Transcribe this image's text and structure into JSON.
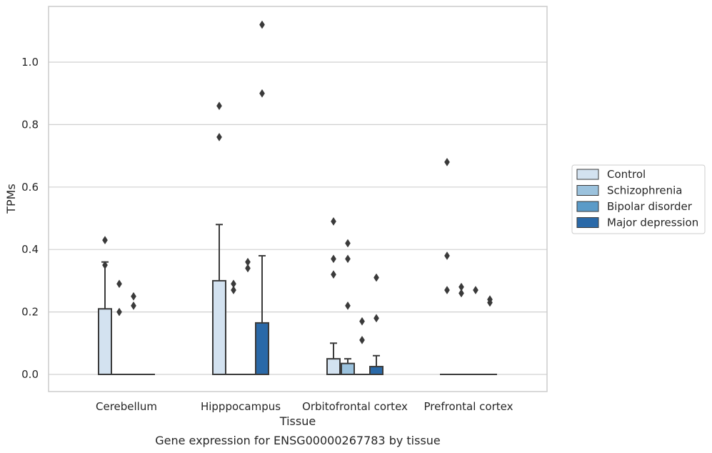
{
  "chart_data": {
    "type": "box",
    "xlabel": "Tissue",
    "ylabel": "TPMs",
    "caption": "Gene expression for ENSG00000267783 by tissue",
    "ylim": [
      -0.055,
      1.18
    ],
    "yticks": [
      0.0,
      0.2,
      0.4,
      0.6,
      0.8,
      1.0
    ],
    "ytick_labels": [
      "0.0",
      "0.2",
      "0.4",
      "0.6",
      "0.8",
      "1.0"
    ],
    "grid": "horizontal",
    "legend_position": "right",
    "categories": [
      "Cerebellum",
      "Hipppocampus",
      "Orbitofrontal cortex",
      "Prefrontal cortex"
    ],
    "series": [
      {
        "name": "Control",
        "color": "#d3e2f0",
        "boxes": [
          {
            "q1": 0.0,
            "median": 0.0,
            "q3": 0.21,
            "whisker_low": 0.0,
            "whisker_high": 0.36,
            "outliers": [
              0.43,
              0.35
            ]
          },
          {
            "q1": 0.0,
            "median": 0.0,
            "q3": 0.3,
            "whisker_low": 0.0,
            "whisker_high": 0.48,
            "outliers": [
              0.86,
              0.76
            ]
          },
          {
            "q1": 0.0,
            "median": 0.0,
            "q3": 0.05,
            "whisker_low": 0.0,
            "whisker_high": 0.1,
            "outliers": [
              0.49,
              0.37,
              0.32
            ]
          },
          {
            "q1": 0.0,
            "median": 0.0,
            "q3": 0.0,
            "whisker_low": 0.0,
            "whisker_high": 0.0,
            "outliers": [
              0.68,
              0.38,
              0.27
            ]
          }
        ]
      },
      {
        "name": "Schizophrenia",
        "color": "#9bc2dd",
        "boxes": [
          {
            "q1": 0.0,
            "median": 0.0,
            "q3": 0.0,
            "whisker_low": 0.0,
            "whisker_high": 0.0,
            "outliers": [
              0.29,
              0.2
            ]
          },
          {
            "q1": 0.0,
            "median": 0.0,
            "q3": 0.0,
            "whisker_low": 0.0,
            "whisker_high": 0.0,
            "outliers": [
              0.29,
              0.27
            ]
          },
          {
            "q1": 0.0,
            "median": 0.0,
            "q3": 0.035,
            "whisker_low": 0.0,
            "whisker_high": 0.05,
            "outliers": [
              0.42,
              0.37,
              0.22
            ]
          },
          {
            "q1": 0.0,
            "median": 0.0,
            "q3": 0.0,
            "whisker_low": 0.0,
            "whisker_high": 0.0,
            "outliers": [
              0.28,
              0.26
            ]
          }
        ]
      },
      {
        "name": "Bipolar disorder",
        "color": "#5b9bc8",
        "boxes": [
          {
            "q1": 0.0,
            "median": 0.0,
            "q3": 0.0,
            "whisker_low": 0.0,
            "whisker_high": 0.0,
            "outliers": [
              0.25,
              0.22
            ]
          },
          {
            "q1": 0.0,
            "median": 0.0,
            "q3": 0.0,
            "whisker_low": 0.0,
            "whisker_high": 0.0,
            "outliers": [
              0.36,
              0.34
            ]
          },
          {
            "q1": 0.0,
            "median": 0.0,
            "q3": 0.0,
            "whisker_low": 0.0,
            "whisker_high": 0.0,
            "outliers": [
              0.17,
              0.11
            ]
          },
          {
            "q1": 0.0,
            "median": 0.0,
            "q3": 0.0,
            "whisker_low": 0.0,
            "whisker_high": 0.0,
            "outliers": [
              0.27
            ]
          }
        ]
      },
      {
        "name": "Major depression",
        "color": "#2a69a8",
        "boxes": [
          {
            "q1": 0.0,
            "median": 0.0,
            "q3": 0.0,
            "whisker_low": 0.0,
            "whisker_high": 0.0,
            "outliers": []
          },
          {
            "q1": 0.0,
            "median": 0.0,
            "q3": 0.165,
            "whisker_low": 0.0,
            "whisker_high": 0.38,
            "outliers": [
              1.12,
              0.9
            ]
          },
          {
            "q1": 0.0,
            "median": 0.0,
            "q3": 0.025,
            "whisker_low": 0.0,
            "whisker_high": 0.06,
            "outliers": [
              0.31,
              0.18
            ]
          },
          {
            "q1": 0.0,
            "median": 0.0,
            "q3": 0.0,
            "whisker_low": 0.0,
            "whisker_high": 0.0,
            "outliers": [
              0.24,
              0.23
            ]
          }
        ]
      }
    ]
  },
  "colors": {
    "frame": "#cccccc",
    "grid": "#d0d0d0",
    "edge": "#3a3a3a",
    "text": "#262626"
  }
}
